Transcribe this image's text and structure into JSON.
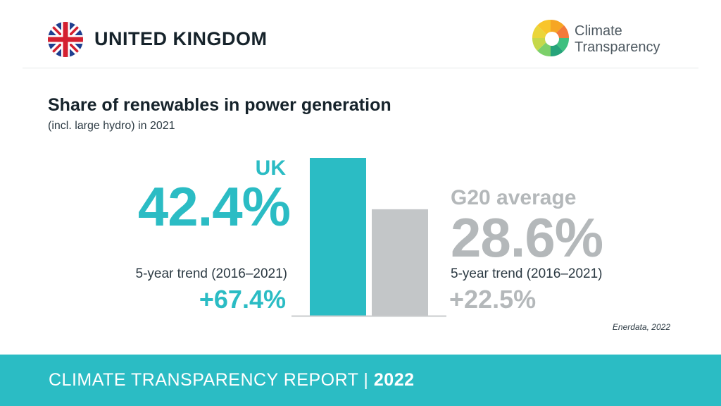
{
  "header": {
    "country": "UNITED KINGDOM",
    "brand_line1": "Climate",
    "brand_line2": "Transparency"
  },
  "chart_data": {
    "type": "bar",
    "title": "Share of renewables in power generation",
    "subtitle": "(incl. large hydro) in 2021",
    "categories": [
      "UK",
      "G20 average"
    ],
    "values": [
      42.4,
      28.6
    ],
    "value_labels": [
      "42.4%",
      "28.6%"
    ],
    "trend_label": "5-year trend (2016–2021)",
    "trends": [
      "+67.4%",
      "+22.5%"
    ],
    "colors": [
      "#2bbcc4",
      "#c3c6c8"
    ],
    "ylim": [
      0,
      42.4
    ],
    "grid": false,
    "source": "Enerdata, 2022"
  },
  "footer": {
    "text": "CLIMATE TRANSPARENCY REPORT |",
    "year": "2022"
  }
}
